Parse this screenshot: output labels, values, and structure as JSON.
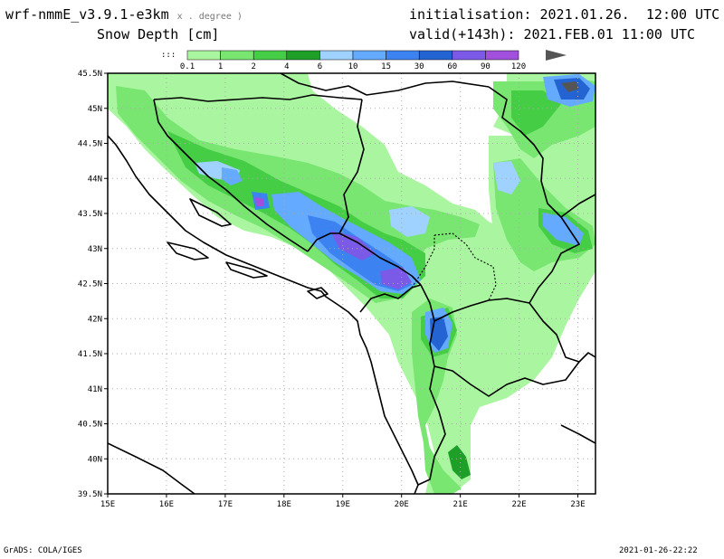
{
  "header": {
    "model": "wrf-nmmE_v3.9.1-e3km",
    "model_sub": "x . degree )",
    "variable": "Snow Depth [cm]",
    "init_label": "initialisation:",
    "init_value": "2021.01.26.  12:00 UTC",
    "valid_label": "valid(+143h):",
    "valid_value": "2021.FEB.01 11:00 UTC"
  },
  "legend": {
    "low_label": ":::",
    "labels": [
      "0.1",
      "1",
      "2",
      "4",
      "6",
      "10",
      "15",
      "30",
      "60",
      "90",
      "120"
    ],
    "colors": [
      "#aaf5a0",
      "#78e670",
      "#46cd46",
      "#1ea028",
      "#a0d2ff",
      "#64aaff",
      "#3c82f0",
      "#2364d2",
      "#7a5ae6",
      "#a050dc",
      "#555555"
    ]
  },
  "map": {
    "lat_labels": [
      "45.5N",
      "45N",
      "44.5N",
      "44N",
      "43.5N",
      "43N",
      "42.5N",
      "42N",
      "41.5N",
      "41N",
      "40.5N",
      "40N",
      "39.5N"
    ],
    "lon_labels": [
      "15E",
      "16E",
      "17E",
      "18E",
      "19E",
      "20E",
      "21E",
      "22E",
      "23E"
    ],
    "colors": {
      "light_green": "#aaf5a0",
      "mid_green": "#78e670",
      "green": "#46cd46",
      "dark_green": "#1ea028",
      "light_blue": "#a0d2ff",
      "blue": "#64aaff",
      "mid_blue": "#3c82f0",
      "dark_blue": "#2364d2",
      "purple": "#7a5ae6",
      "violet": "#a050dc",
      "grey": "#555555"
    }
  },
  "footer": {
    "left": "GrADS: COLA/IGES",
    "right": "2021-01-26-22:22"
  }
}
